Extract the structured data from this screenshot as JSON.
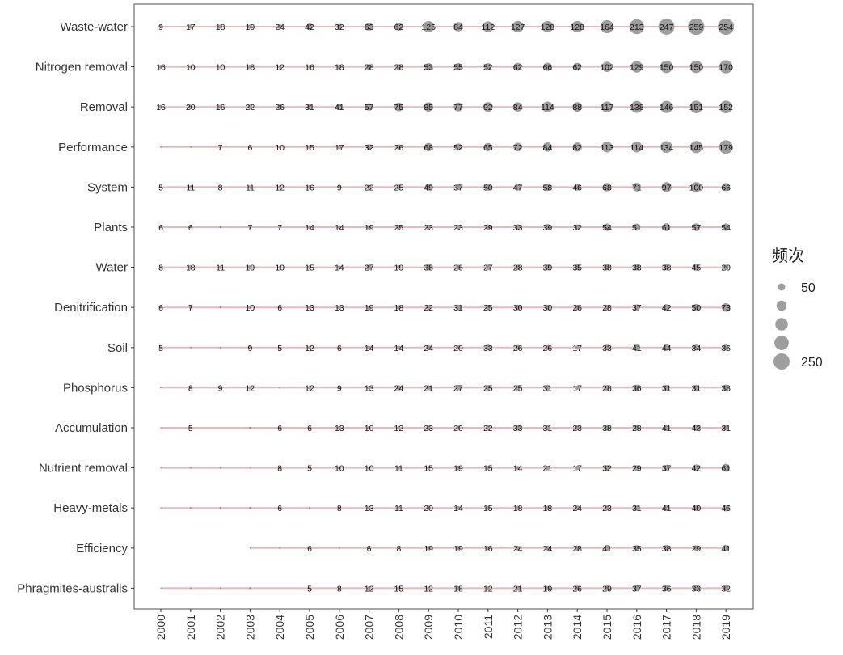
{
  "chart_data": {
    "type": "scatter",
    "x": [
      "2000",
      "2001",
      "2002",
      "2003",
      "2004",
      "2005",
      "2006",
      "2007",
      "2008",
      "2009",
      "2010",
      "2011",
      "2012",
      "2013",
      "2014",
      "2015",
      "2016",
      "2017",
      "2018",
      "2019"
    ],
    "categories": [
      "Waste-water",
      "Nitrogen removal",
      "Removal",
      "Performance",
      "System",
      "Plants",
      "Water",
      "Denitrification",
      "Soil",
      "Phosphorus",
      "Accumulation",
      "Nutrient removal",
      "Heavy-metals",
      "Efficiency",
      "Phragmites-australis"
    ],
    "series": [
      {
        "values": [
          9,
          17,
          18,
          19,
          24,
          42,
          32,
          63,
          62,
          125,
          84,
          112,
          127,
          128,
          128,
          164,
          213,
          247,
          259,
          254
        ]
      },
      {
        "values": [
          16,
          10,
          10,
          18,
          12,
          16,
          18,
          28,
          28,
          53,
          55,
          52,
          62,
          66,
          62,
          102,
          129,
          150,
          150,
          170
        ]
      },
      {
        "values": [
          16,
          20,
          16,
          22,
          26,
          31,
          41,
          57,
          75,
          85,
          77,
          92,
          84,
          114,
          88,
          117,
          138,
          146,
          151,
          152
        ]
      },
      {
        "values": [
          2,
          2,
          7,
          6,
          10,
          15,
          17,
          32,
          26,
          68,
          52,
          65,
          72,
          84,
          82,
          113,
          114,
          134,
          145,
          179
        ]
      },
      {
        "values": [
          5,
          11,
          8,
          11,
          12,
          16,
          9,
          22,
          25,
          49,
          37,
          50,
          47,
          58,
          46,
          68,
          71,
          97,
          100,
          66
        ]
      },
      {
        "values": [
          6,
          6,
          3,
          7,
          7,
          14,
          14,
          19,
          25,
          23,
          23,
          29,
          33,
          39,
          32,
          54,
          51,
          61,
          57,
          54
        ]
      },
      {
        "values": [
          8,
          18,
          11,
          19,
          10,
          15,
          14,
          27,
          19,
          38,
          26,
          27,
          28,
          39,
          35,
          38,
          38,
          38,
          45,
          29
        ]
      },
      {
        "values": [
          6,
          7,
          3,
          10,
          6,
          13,
          13,
          19,
          18,
          22,
          31,
          25,
          30,
          30,
          26,
          28,
          37,
          42,
          50,
          73
        ]
      },
      {
        "values": [
          5,
          2,
          2,
          9,
          5,
          12,
          6,
          14,
          14,
          24,
          20,
          33,
          26,
          26,
          17,
          33,
          41,
          44,
          34,
          36
        ]
      },
      {
        "values": [
          2,
          8,
          9,
          12,
          2,
          12,
          9,
          13,
          24,
          21,
          27,
          25,
          25,
          31,
          17,
          28,
          36,
          31,
          31,
          38
        ]
      },
      {
        "values": [
          1,
          5,
          null,
          3,
          6,
          6,
          13,
          10,
          12,
          23,
          20,
          22,
          33,
          31,
          23,
          38,
          28,
          41,
          43,
          31
        ]
      },
      {
        "values": [
          1,
          2,
          2,
          1,
          8,
          5,
          10,
          10,
          11,
          15,
          19,
          15,
          14,
          21,
          17,
          32,
          29,
          37,
          42,
          61
        ]
      },
      {
        "values": [
          1,
          2,
          3,
          3,
          6,
          3,
          8,
          13,
          11,
          20,
          14,
          15,
          18,
          18,
          24,
          23,
          31,
          41,
          40,
          46
        ]
      },
      {
        "values": [
          null,
          null,
          null,
          1,
          2,
          6,
          2,
          6,
          8,
          19,
          19,
          16,
          24,
          24,
          28,
          41,
          35,
          38,
          29,
          41
        ]
      },
      {
        "values": [
          1,
          2,
          2,
          3,
          null,
          5,
          8,
          12,
          15,
          12,
          18,
          12,
          21,
          19,
          26,
          29,
          37,
          36,
          33,
          32
        ]
      }
    ],
    "label_min": 5,
    "legend": {
      "title": "频次",
      "entries": [
        50,
        100,
        150,
        200,
        250
      ],
      "labels": [
        "50",
        "",
        "",
        "",
        "250"
      ],
      "position": "right"
    },
    "colors": {
      "point": "#9e9e9e",
      "small_point": "#8a7f84",
      "segment": "#e8b8c0",
      "panel_border": "#4d4d4d",
      "text": "#333333"
    }
  }
}
